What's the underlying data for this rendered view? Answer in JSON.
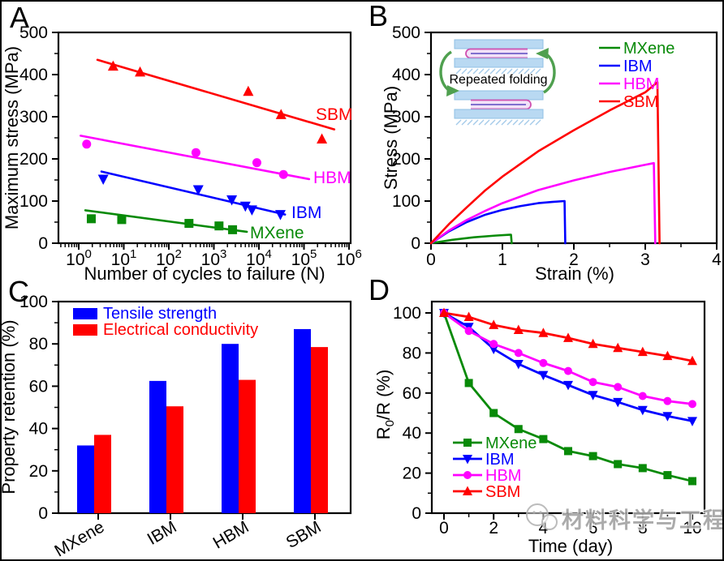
{
  "watermark": {
    "text": "材料科学与工程",
    "logo": "panda-bubbles-logo"
  },
  "chart_data": [
    {
      "panel": "A",
      "type": "scatter",
      "xscale": "log",
      "xlabel": "Number of cycles to failure (N)",
      "ylabel": "Maximum stress (MPa)",
      "xtick_decades": [
        0,
        1,
        2,
        3,
        4,
        5,
        6
      ],
      "ylim": [
        0,
        500
      ],
      "yticks": [
        0,
        100,
        200,
        300,
        400,
        500
      ],
      "series": [
        {
          "name": "SBM",
          "color": "#FF0000",
          "marker": "triangle-up",
          "points": [
            [
              5.8,
              420
            ],
            [
              23,
              406
            ],
            [
              5800,
              360
            ],
            [
              31000,
              305
            ],
            [
              250000,
              247
            ]
          ],
          "fit_line": [
            [
              2.6,
              435
            ],
            [
              470000,
              270
            ]
          ]
        },
        {
          "name": "HBM",
          "color": "#FF00FF",
          "marker": "circle",
          "points": [
            [
              1.5,
              235
            ],
            [
              400,
              215
            ],
            [
              9000,
              191
            ],
            [
              35000,
              163
            ]
          ],
          "fit_line": [
            [
              1.1,
              255
            ],
            [
              130000,
              152
            ]
          ]
        },
        {
          "name": "IBM",
          "color": "#0000FF",
          "marker": "triangle-down",
          "points": [
            [
              3.5,
              152
            ],
            [
              450,
              127
            ],
            [
              2500,
              103
            ],
            [
              5000,
              88
            ],
            [
              7000,
              79
            ],
            [
              30000,
              68
            ]
          ],
          "fit_line": [
            [
              3.2,
              170
            ],
            [
              38000,
              68
            ]
          ]
        },
        {
          "name": "MXene",
          "color": "#088A08",
          "marker": "square",
          "points": [
            [
              1.9,
              58
            ],
            [
              9,
              56
            ],
            [
              280,
              47
            ],
            [
              1300,
              41
            ],
            [
              2600,
              32
            ]
          ],
          "fit_line": [
            [
              1.4,
              78
            ],
            [
              5400,
              27
            ]
          ]
        }
      ]
    },
    {
      "panel": "B",
      "type": "line",
      "xlabel": "Strain (%)",
      "ylabel": "Stress (MPa)",
      "xlim": [
        0,
        4
      ],
      "ylim": [
        0,
        500
      ],
      "xticks": [
        0,
        1,
        2,
        3,
        4
      ],
      "yticks": [
        0,
        100,
        200,
        300,
        400,
        500
      ],
      "legend_position": "top-right",
      "inset": {
        "label": "Repeated folding"
      },
      "series": [
        {
          "name": "MXene",
          "color": "#088A08",
          "points": [
            [
              0,
              0
            ],
            [
              0.3,
              8
            ],
            [
              0.6,
              14
            ],
            [
              0.9,
              18
            ],
            [
              1.1,
              20
            ],
            [
              1.12,
              20
            ],
            [
              1.13,
              0
            ]
          ]
        },
        {
          "name": "IBM",
          "color": "#0000FF",
          "points": [
            [
              0,
              0
            ],
            [
              0.25,
              28
            ],
            [
              0.5,
              50
            ],
            [
              0.75,
              67
            ],
            [
              1.0,
              79
            ],
            [
              1.25,
              88
            ],
            [
              1.5,
              95
            ],
            [
              1.7,
              98
            ],
            [
              1.87,
              100
            ],
            [
              1.88,
              0
            ]
          ]
        },
        {
          "name": "HBM",
          "color": "#FF00FF",
          "points": [
            [
              0,
              0
            ],
            [
              0.25,
              30
            ],
            [
              0.5,
              55
            ],
            [
              0.75,
              76
            ],
            [
              1.0,
              95
            ],
            [
              1.5,
              126
            ],
            [
              2.0,
              149
            ],
            [
              2.5,
              169
            ],
            [
              3.0,
              186
            ],
            [
              3.12,
              190
            ],
            [
              3.14,
              0
            ]
          ]
        },
        {
          "name": "SBM",
          "color": "#FF0000",
          "points": [
            [
              0,
              0
            ],
            [
              0.25,
              45
            ],
            [
              0.5,
              85
            ],
            [
              0.75,
              124
            ],
            [
              1.0,
              158
            ],
            [
              1.5,
              218
            ],
            [
              2.0,
              268
            ],
            [
              2.5,
              315
            ],
            [
              3.0,
              358
            ],
            [
              3.17,
              382
            ],
            [
              3.2,
              0
            ]
          ]
        }
      ]
    },
    {
      "panel": "C",
      "type": "bar",
      "ylabel": "Property retention (%)",
      "categories": [
        "MXene",
        "IBM",
        "HBM",
        "SBM"
      ],
      "ylim": [
        0,
        100
      ],
      "yticks": [
        0,
        20,
        40,
        60,
        80,
        100
      ],
      "legend_position": "top-left",
      "series": [
        {
          "name": "Tensile strength",
          "color": "#0000FF",
          "values": [
            32,
            62.5,
            80,
            87
          ]
        },
        {
          "name": "Electrical conductivity",
          "color": "#FF0000",
          "values": [
            37,
            50.5,
            63,
            78.5
          ]
        }
      ]
    },
    {
      "panel": "D",
      "type": "line",
      "xlabel": "Time (day)",
      "ylabel": "R0/R (%)",
      "ylabel_parts": {
        "pre": "R",
        "sub": "0",
        "post": "/R (%)"
      },
      "x": [
        0,
        1,
        2,
        3,
        4,
        5,
        6,
        7,
        8,
        9,
        10
      ],
      "xticks": [
        0,
        2,
        4,
        6,
        8,
        10
      ],
      "ylim": [
        0,
        105
      ],
      "yticks": [
        0,
        20,
        40,
        60,
        80,
        100
      ],
      "legend_position": "bottom-left",
      "series": [
        {
          "name": "MXene",
          "color": "#088A08",
          "marker": "square",
          "values": [
            100,
            65,
            50,
            42,
            37,
            31,
            28.5,
            24.5,
            22.5,
            19,
            16
          ]
        },
        {
          "name": "IBM",
          "color": "#0000FF",
          "marker": "triangle-down",
          "values": [
            100,
            93,
            82,
            74.5,
            69,
            64,
            59,
            55.5,
            51.5,
            48.5,
            46
          ]
        },
        {
          "name": "HBM",
          "color": "#FF00FF",
          "marker": "circle",
          "values": [
            100,
            91,
            84.5,
            80,
            75,
            71,
            65.5,
            63,
            58.5,
            56,
            54.5
          ]
        },
        {
          "name": "SBM",
          "color": "#FF0000",
          "marker": "triangle-up",
          "values": [
            100,
            98,
            94,
            91.5,
            90,
            87.5,
            84.5,
            82.5,
            80.5,
            78.5,
            76
          ]
        }
      ]
    }
  ]
}
